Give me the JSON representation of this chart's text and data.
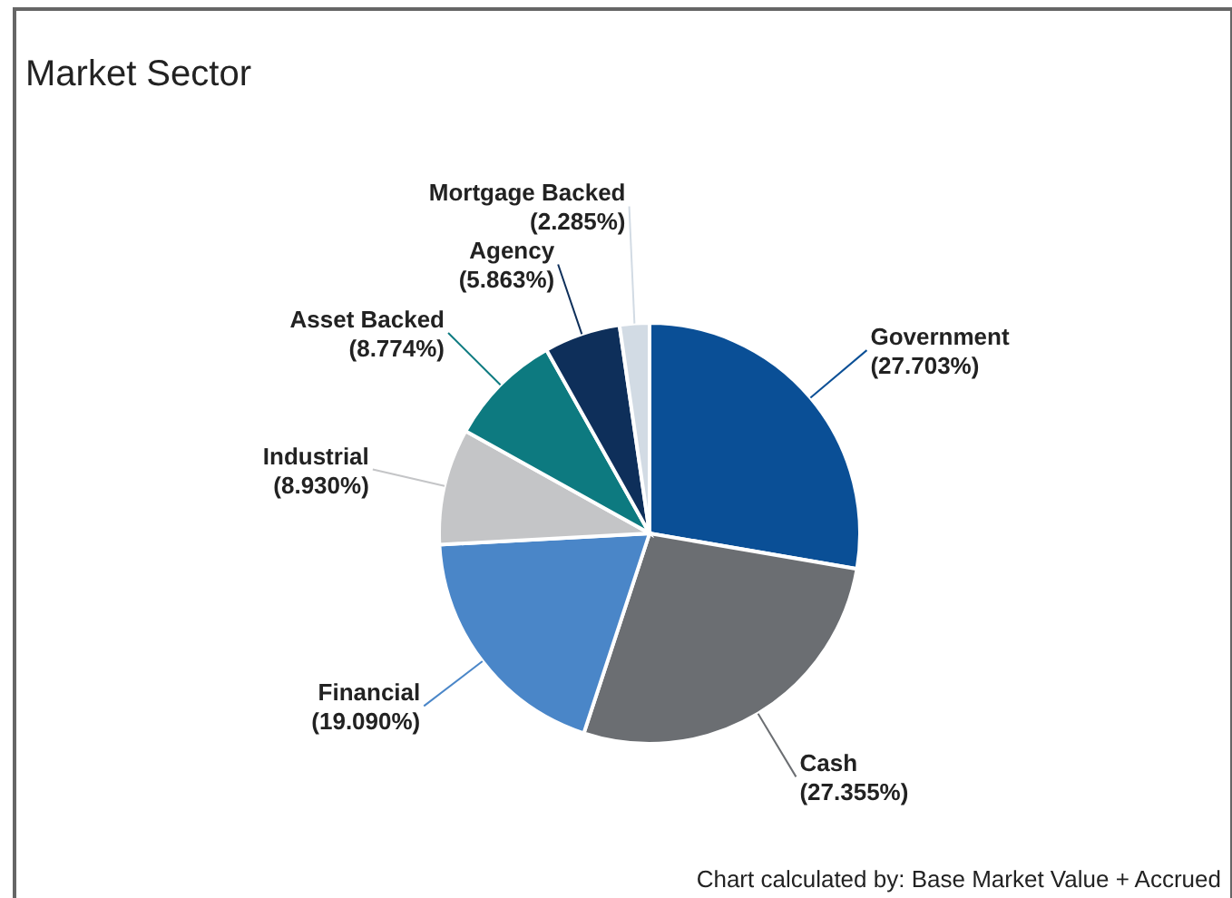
{
  "chart_data": {
    "type": "pie",
    "title": "Market Sector",
    "categories": [
      "Government",
      "Cash",
      "Financial",
      "Industrial",
      "Asset Backed",
      "Agency",
      "Mortgage Backed"
    ],
    "values": [
      27.703,
      27.355,
      19.09,
      8.93,
      8.774,
      5.863,
      2.285
    ],
    "value_labels": [
      "(27.703%)",
      "(27.355%)",
      "(19.090%)",
      "(8.930%)",
      "(8.774%)",
      "(5.863%)",
      "(2.285%)"
    ],
    "colors": [
      "#0a4f96",
      "#6b6e72",
      "#4a86c8",
      "#c4c5c7",
      "#0d7a80",
      "#0e2f5a",
      "#d2dbe4"
    ],
    "annotations": [
      "Chart calculated by: Base Market Value + Accrued"
    ]
  }
}
